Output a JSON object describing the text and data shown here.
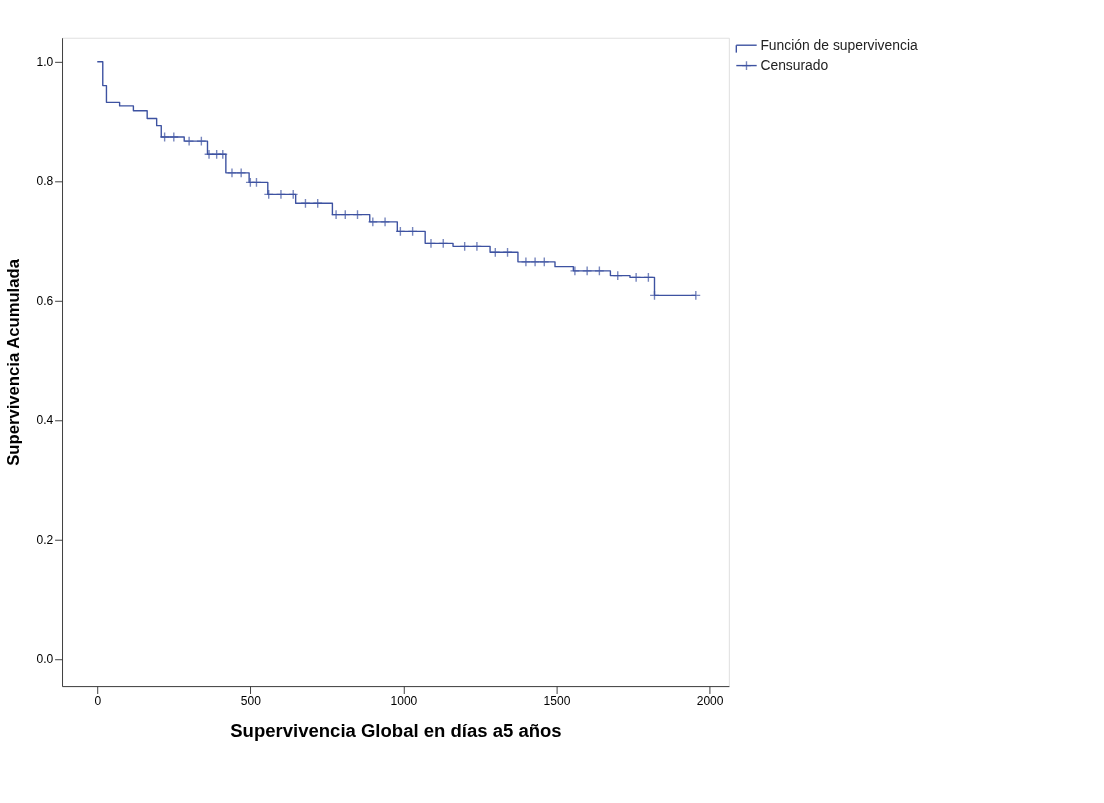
{
  "chart_data": {
    "type": "step",
    "xlabel": "Supervivencia Global en días a5 años",
    "ylabel": "Supervivencia Acumulada",
    "xlim": [
      -115,
      2063
    ],
    "ylim": [
      -0.045,
      1.04
    ],
    "xticks": [
      0,
      500,
      1000,
      1500,
      2000
    ],
    "yticks": [
      {
        "value": 0,
        "label": "0.0"
      },
      {
        "value": 0.2,
        "label": "0.2"
      },
      {
        "value": 0.4,
        "label": "0.4"
      },
      {
        "value": 0.6,
        "label": "0.6"
      },
      {
        "value": 0.8,
        "label": "0.8"
      },
      {
        "value": 1,
        "label": "1.0"
      }
    ],
    "grid": false,
    "legend": "top right",
    "series": [
      {
        "name": "Función de supervivencia",
        "color": "#3d52a1",
        "x": [
          0,
          18,
          30,
          73,
          118,
          163,
          194,
          209,
          284,
          360,
          420,
          496,
          557,
          648,
          768,
          890,
          980,
          1071,
          1162,
          1283,
          1374,
          1495,
          1555,
          1676,
          1740,
          1820,
          1955
        ],
        "values": [
          1.0,
          0.96,
          0.932,
          0.926,
          0.918,
          0.905,
          0.893,
          0.874,
          0.867,
          0.845,
          0.814,
          0.798,
          0.778,
          0.763,
          0.744,
          0.732,
          0.716,
          0.696,
          0.691,
          0.681,
          0.665,
          0.657,
          0.65,
          0.642,
          0.639,
          0.609,
          0.609
        ]
      },
      {
        "name": "Censurado",
        "type": "scatter",
        "marker": "cross",
        "color": "#3d52a1",
        "x": [
          220,
          250,
          300,
          340,
          365,
          390,
          410,
          440,
          470,
          500,
          520,
          560,
          600,
          640,
          680,
          720,
          780,
          810,
          850,
          900,
          940,
          990,
          1030,
          1090,
          1130,
          1200,
          1240,
          1300,
          1340,
          1400,
          1430,
          1460,
          1560,
          1600,
          1640,
          1700,
          1760,
          1800,
          1820,
          1955
        ],
        "values": [
          0.874,
          0.874,
          0.867,
          0.867,
          0.845,
          0.845,
          0.845,
          0.814,
          0.814,
          0.798,
          0.798,
          0.778,
          0.778,
          0.778,
          0.763,
          0.763,
          0.744,
          0.744,
          0.744,
          0.732,
          0.732,
          0.716,
          0.716,
          0.696,
          0.696,
          0.691,
          0.691,
          0.681,
          0.681,
          0.665,
          0.665,
          0.665,
          0.65,
          0.65,
          0.65,
          0.642,
          0.639,
          0.639,
          0.609,
          0.609
        ]
      }
    ]
  }
}
